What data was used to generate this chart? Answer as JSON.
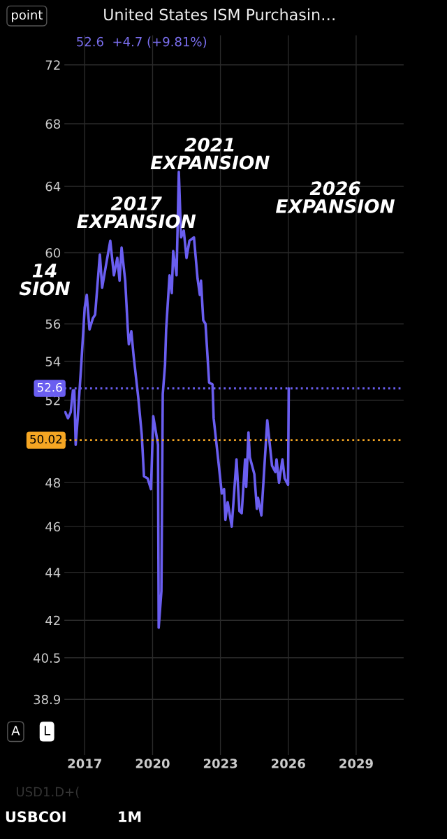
{
  "chart_data": {
    "type": "line",
    "title": "United States ISM Purchasin…",
    "subtitle": "52.6  +4.7 (+9.81%)",
    "x": [
      2016.14,
      2016.26,
      2016.38,
      2016.48,
      2016.54,
      2016.6,
      2016.69,
      2016.85,
      2017.0,
      2017.09,
      2017.21,
      2017.36,
      2017.46,
      2017.67,
      2017.77,
      2017.93,
      2018.13,
      2018.29,
      2018.44,
      2018.54,
      2018.63,
      2018.79,
      2018.9,
      2018.95,
      2019.06,
      2019.16,
      2019.37,
      2019.52,
      2019.62,
      2019.78,
      2019.93,
      2020.03,
      2020.24,
      2020.27,
      2020.39,
      2020.45,
      2020.55,
      2020.6,
      2020.75,
      2020.85,
      2020.91,
      2021.06,
      2021.16,
      2021.26,
      2021.38,
      2021.5,
      2021.63,
      2021.83,
      2021.99,
      2022.09,
      2022.14,
      2022.24,
      2022.34,
      2022.5,
      2022.65,
      2022.7,
      2022.91,
      2023.06,
      2023.16,
      2023.22,
      2023.32,
      2023.5,
      2023.71,
      2023.84,
      2023.94,
      2024.09,
      2024.14,
      2024.24,
      2024.3,
      2024.5,
      2024.61,
      2024.66,
      2024.81,
      2025.07,
      2025.28,
      2025.43,
      2025.48,
      2025.59,
      2025.74,
      2025.84,
      2025.99,
      2026.02
    ],
    "series": [
      {
        "color": "#6a5ef0",
        "values": [
          51.4,
          51.1,
          51.4,
          52.5,
          52.5,
          49.8,
          51.1,
          53.9,
          56.9,
          57.6,
          55.7,
          56.3,
          56.5,
          59.9,
          58.0,
          59.2,
          60.7,
          58.7,
          59.7,
          58.4,
          60.3,
          58.4,
          55.8,
          54.9,
          55.6,
          54.3,
          52.1,
          50.3,
          48.3,
          48.2,
          47.7,
          51.2,
          49.8,
          41.7,
          43.2,
          52.3,
          53.8,
          55.7,
          58.7,
          57.7,
          60.1,
          58.7,
          64.9,
          60.9,
          61.3,
          59.7,
          60.7,
          60.9,
          58.5,
          57.6,
          58.4,
          56.2,
          56.0,
          52.9,
          52.8,
          51.1,
          49.0,
          47.5,
          47.7,
          46.3,
          47.1,
          46.0,
          49.1,
          46.7,
          46.6,
          49.1,
          47.8,
          50.4,
          49.2,
          48.4,
          46.8,
          47.3,
          46.5,
          51.0,
          48.8,
          48.5,
          49.1,
          48.0,
          49.1,
          48.2,
          47.9,
          52.6
        ]
      }
    ],
    "log": "y",
    "xlim": [
      2016.1,
      2031.1
    ],
    "ylim": [
      36.85,
      74.1
    ],
    "xticks": [
      2017,
      2020,
      2023,
      2026,
      2029
    ],
    "yticks": [
      38.9,
      40.5,
      42,
      44,
      46,
      48,
      52,
      54,
      56,
      60,
      64,
      68,
      72
    ],
    "grid": true,
    "ref_lines": [
      {
        "axis": "y",
        "value": 52.6,
        "label": "52.6",
        "color": "#6a5ef0",
        "line_style": "dotted"
      },
      {
        "axis": "y",
        "value": 50.02,
        "label": "50.02",
        "color": "#f5a623",
        "line_style": "dotted"
      }
    ],
    "annotations": [
      "14\nSION",
      "2017\nEXPANSION",
      "2021\nEXPANSION",
      "2026\nEXPANSION",
      "point",
      "A",
      "L",
      "USD1.D+(",
      "USBCOI",
      "1M"
    ]
  }
}
